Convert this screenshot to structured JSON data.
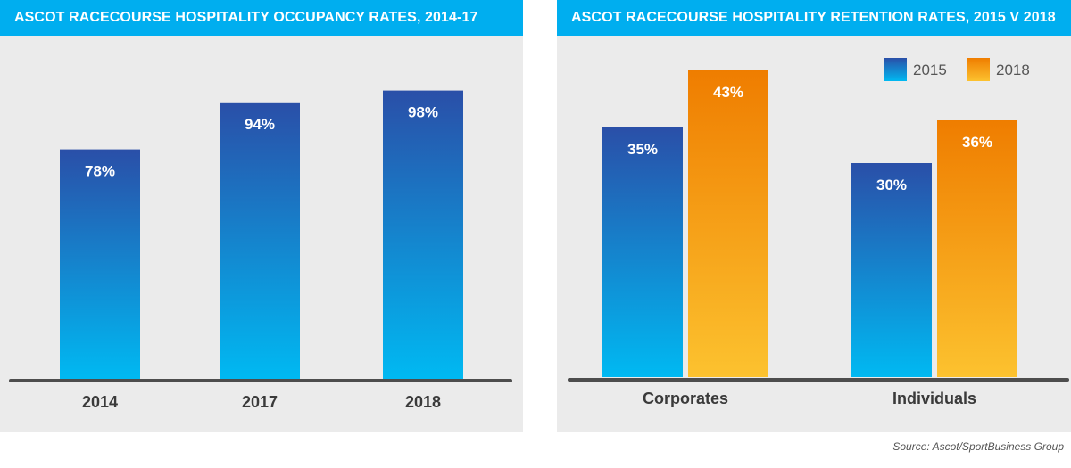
{
  "chart_data": [
    {
      "type": "bar",
      "title": "ASCOT RACECOURSE HOSPITALITY OCCUPANCY RATES, 2014-17",
      "categories": [
        "2014",
        "2017",
        "2018"
      ],
      "values": [
        78,
        94,
        98
      ],
      "value_labels": [
        "78%",
        "94%",
        "98%"
      ],
      "ylim": [
        0,
        100
      ],
      "grid": false,
      "colors": {
        "top": "#2a4fa8",
        "bottom": "#00b9f2"
      }
    },
    {
      "type": "bar",
      "title": "ASCOT RACECOURSE HOSPITALITY RETENTION RATES, 2015 V 2018",
      "categories": [
        "Corporates",
        "Individuals"
      ],
      "series": [
        {
          "name": "2015",
          "values": [
            35,
            30
          ],
          "value_labels": [
            "35%",
            "30%"
          ],
          "color_top": "#2a4fa8",
          "color_bottom": "#00b9f2"
        },
        {
          "name": "2018",
          "values": [
            43,
            36
          ],
          "value_labels": [
            "43%",
            "36%"
          ],
          "color_top": "#ef7d00",
          "color_bottom": "#fcc22f"
        }
      ],
      "ylim": [
        0,
        50
      ],
      "grid": false,
      "legend": "top-right"
    }
  ],
  "source": "Source: Ascot/SportBusiness Group",
  "colors": {
    "title_bar": "#00aeef",
    "panel_bg": "#ebebeb",
    "axis": "#4d4d4d"
  }
}
